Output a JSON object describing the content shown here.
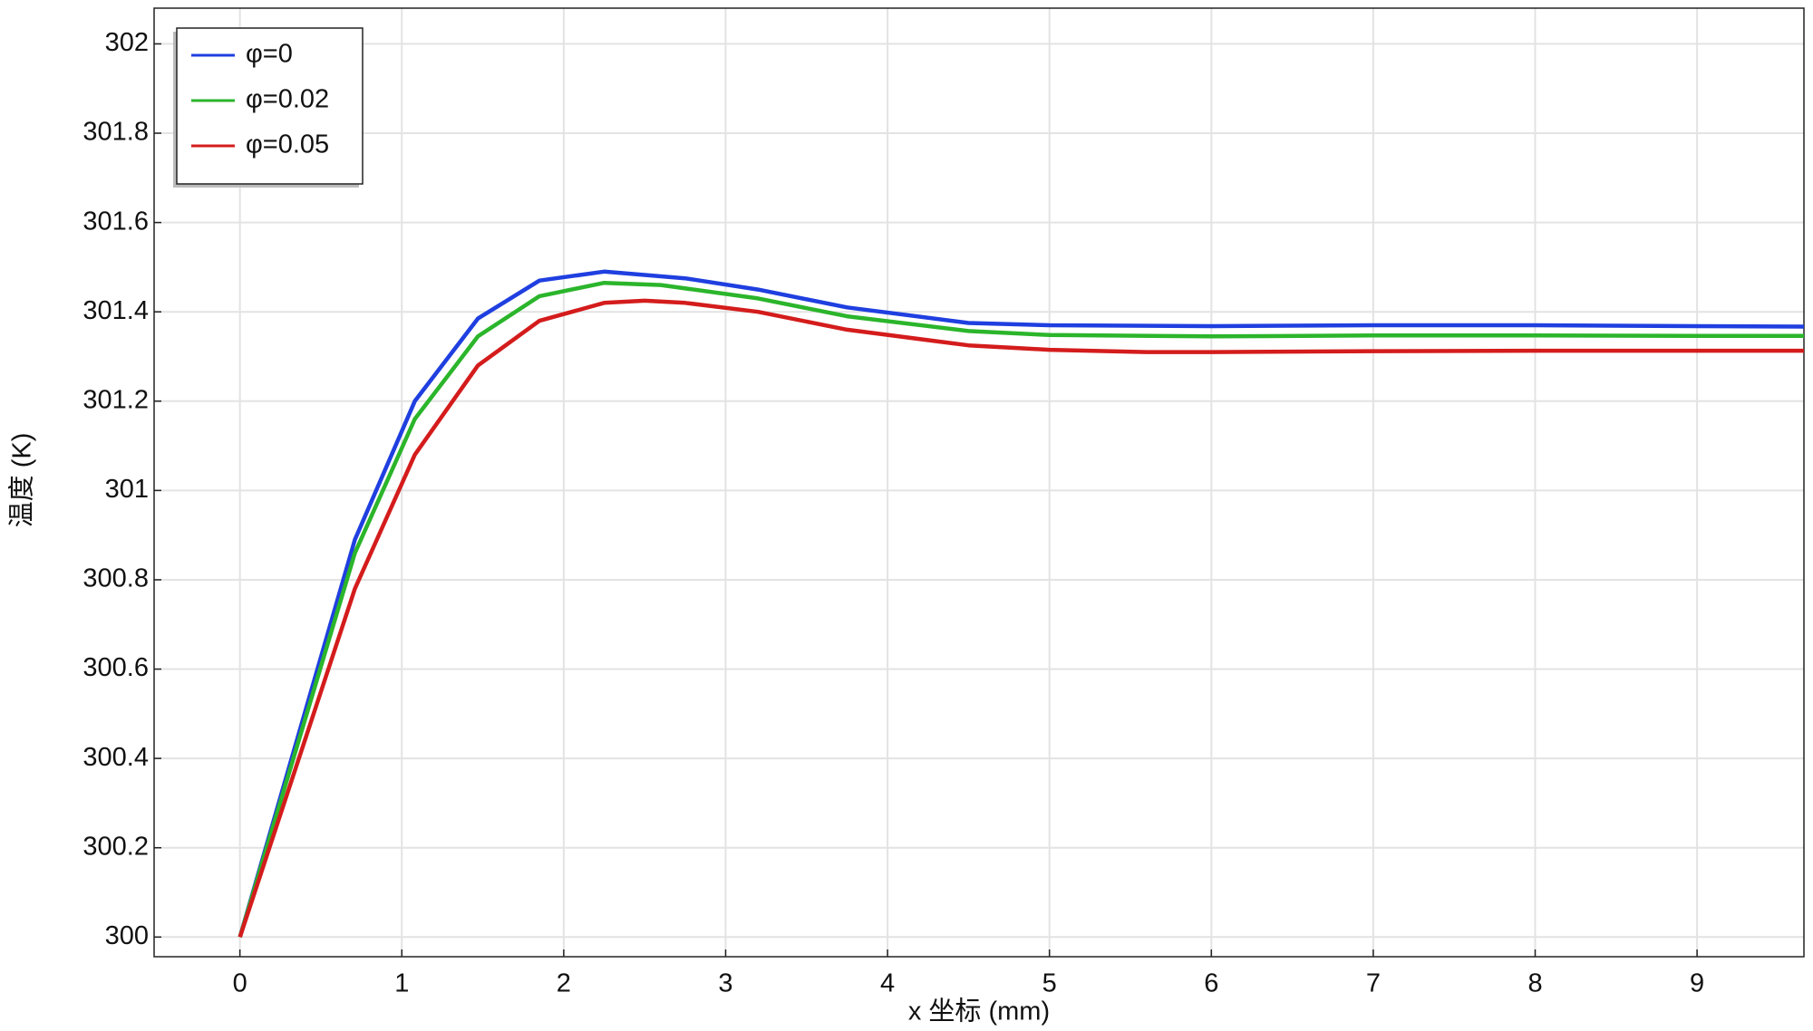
{
  "chart_data": {
    "type": "line",
    "x_label": "x 坐标 (mm)",
    "y_label": "温度 (K)",
    "xlim": [
      -0.53,
      9.66
    ],
    "ylim": [
      299.956,
      302.08
    ],
    "xticks": [
      0,
      1,
      2,
      3,
      4,
      5,
      6,
      7,
      8,
      9
    ],
    "yticks": [
      300,
      300.2,
      300.4,
      300.6,
      300.8,
      301,
      301.2,
      301.4,
      301.6,
      301.8,
      302
    ],
    "grid": true,
    "legend": "upper left",
    "series": [
      {
        "name": "φ=0",
        "color": "#1f3fe0",
        "x": [
          0,
          0.71,
          1.08,
          1.47,
          1.85,
          2.25,
          2.75,
          3.2,
          3.75,
          4.5,
          5,
          6,
          7,
          8,
          9,
          9.66
        ],
        "values": [
          300,
          300.89,
          301.2,
          301.385,
          301.47,
          301.49,
          301.475,
          301.45,
          301.41,
          301.375,
          301.37,
          301.368,
          301.37,
          301.37,
          301.368,
          301.367
        ]
      },
      {
        "name": "φ=0.02",
        "color": "#2bb52b",
        "x": [
          0,
          0.71,
          1.08,
          1.47,
          1.85,
          2.25,
          2.6,
          3.2,
          3.75,
          4.5,
          5,
          6,
          7,
          8,
          9,
          9.66
        ],
        "values": [
          300,
          300.86,
          301.16,
          301.345,
          301.435,
          301.465,
          301.46,
          301.43,
          301.39,
          301.357,
          301.348,
          301.345,
          301.347,
          301.347,
          301.346,
          301.346
        ]
      },
      {
        "name": "φ=0.05",
        "color": "#d41c1c",
        "x": [
          0,
          0.71,
          1.08,
          1.47,
          1.85,
          2.25,
          2.5,
          2.75,
          3.2,
          3.75,
          4.5,
          5,
          5.6,
          6,
          7,
          8,
          9,
          9.66
        ],
        "values": [
          300,
          300.78,
          301.08,
          301.28,
          301.38,
          301.42,
          301.425,
          301.42,
          301.4,
          301.36,
          301.325,
          301.315,
          301.31,
          301.31,
          301.312,
          301.313,
          301.313,
          301.313
        ]
      }
    ]
  }
}
